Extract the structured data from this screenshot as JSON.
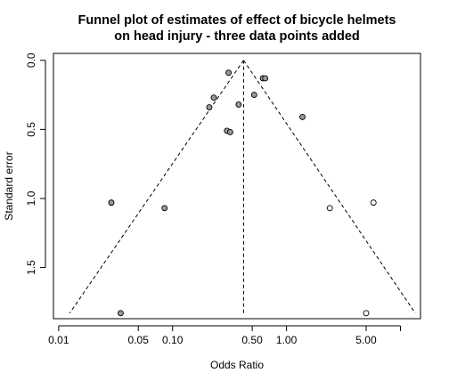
{
  "chart_data": {
    "type": "scatter",
    "title": [
      "Funnel plot of estimates of effect of bicycle helmets",
      "on head injury - three data points added"
    ],
    "xlabel": "Odds Ratio",
    "ylabel": "Standard error",
    "x_scale": "log",
    "y_reversed": true,
    "xlim": [
      0.009,
      15
    ],
    "ylim": [
      1.87,
      -0.05
    ],
    "x_ticks": [
      {
        "value": 0.01,
        "label": "0.01"
      },
      {
        "value": 0.05,
        "label": "0.05"
      },
      {
        "value": 0.1,
        "label": "0.10"
      },
      {
        "value": 0.5,
        "label": "0.50"
      },
      {
        "value": 1.0,
        "label": "1.00"
      },
      {
        "value": 5.0,
        "label": "5.00"
      },
      {
        "value": 10.0,
        "label": ""
      }
    ],
    "y_ticks": [
      {
        "value": 0.0,
        "label": "0.0"
      },
      {
        "value": 0.5,
        "label": "0.5"
      },
      {
        "value": 1.0,
        "label": "1.0"
      },
      {
        "value": 1.5,
        "label": "1.5"
      }
    ],
    "grid": false,
    "pooled_estimate": 0.42,
    "funnel_lines": [
      {
        "from": [
          0.42,
          0.0
        ],
        "to": [
          0.0125,
          1.83
        ]
      },
      {
        "from": [
          0.42,
          0.0
        ],
        "to": [
          13.5,
          1.83
        ]
      },
      {
        "from": [
          0.42,
          0.0
        ],
        "to": [
          0.42,
          1.83
        ]
      }
    ],
    "series": [
      {
        "fill": "#999999",
        "points": [
          {
            "x": 0.31,
            "y": 0.09
          },
          {
            "x": 0.62,
            "y": 0.13
          },
          {
            "x": 0.65,
            "y": 0.13
          },
          {
            "x": 0.23,
            "y": 0.27
          },
          {
            "x": 0.21,
            "y": 0.34
          },
          {
            "x": 0.38,
            "y": 0.32
          },
          {
            "x": 0.52,
            "y": 0.25
          },
          {
            "x": 1.38,
            "y": 0.41
          },
          {
            "x": 0.3,
            "y": 0.51
          },
          {
            "x": 0.32,
            "y": 0.52
          },
          {
            "x": 0.029,
            "y": 1.03
          },
          {
            "x": 0.085,
            "y": 1.07
          },
          {
            "x": 0.035,
            "y": 1.83
          }
        ]
      },
      {
        "fill": "#ffffff",
        "points": [
          {
            "x": 2.4,
            "y": 1.07
          },
          {
            "x": 5.8,
            "y": 1.03
          },
          {
            "x": 5.0,
            "y": 1.83
          }
        ]
      }
    ]
  }
}
